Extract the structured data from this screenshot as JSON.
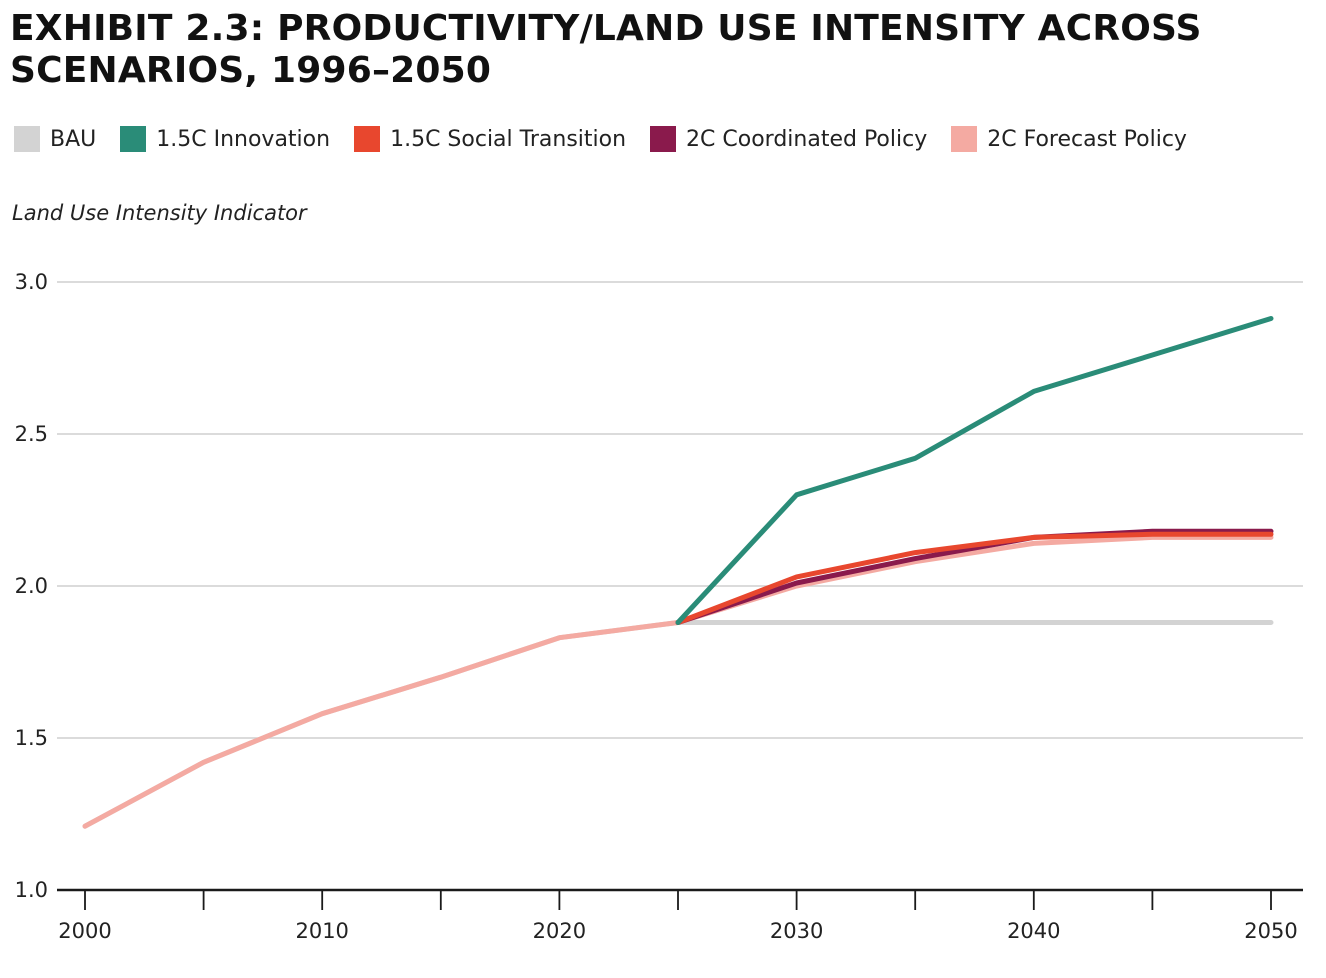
{
  "chart_data": {
    "type": "line",
    "title": "EXHIBIT 2.3: PRODUCTIVITY/LAND USE INTENSITY ACROSS SCENARIOS, 1996–2050",
    "ylabel": "Land Use Intensity Indicator",
    "xlabel": "",
    "xlim": [
      2000,
      2050
    ],
    "ylim": [
      1.0,
      3.0
    ],
    "x_ticks": [
      2000,
      2010,
      2020,
      2030,
      2040,
      2050
    ],
    "x_minor_ticks": [
      2005,
      2015,
      2025,
      2035,
      2045
    ],
    "y_ticks": [
      "1.0",
      "1.5",
      "2.0",
      "2.5",
      "3.0"
    ],
    "grid": true,
    "legend_position": "top",
    "series": [
      {
        "name": "BAU",
        "color": "#d3d3d3",
        "x": [
          2000,
          2005,
          2010,
          2015,
          2020,
          2025,
          2030,
          2035,
          2040,
          2045,
          2050
        ],
        "values": [
          1.21,
          1.42,
          1.58,
          1.7,
          1.83,
          1.88,
          1.88,
          1.88,
          1.88,
          1.88,
          1.88
        ]
      },
      {
        "name": "2C Forecast Policy",
        "color": "#f4aaa2",
        "x": [
          2000,
          2005,
          2010,
          2015,
          2020,
          2025,
          2030,
          2035,
          2040,
          2045,
          2050
        ],
        "values": [
          1.21,
          1.42,
          1.58,
          1.7,
          1.83,
          1.88,
          2.0,
          2.08,
          2.14,
          2.16,
          2.16
        ]
      },
      {
        "name": "2C Coordinated Policy",
        "color": "#8a1a4c",
        "x": [
          2025,
          2030,
          2035,
          2040,
          2045,
          2050
        ],
        "values": [
          1.88,
          2.01,
          2.09,
          2.16,
          2.18,
          2.18
        ]
      },
      {
        "name": "1.5C Social Transition",
        "color": "#e8472e",
        "x": [
          2025,
          2030,
          2035,
          2040,
          2045,
          2050
        ],
        "values": [
          1.88,
          2.03,
          2.11,
          2.16,
          2.17,
          2.17
        ]
      },
      {
        "name": "1.5C Innovation",
        "color": "#2a8c78",
        "x": [
          2025,
          2030,
          2035,
          2040,
          2045,
          2050
        ],
        "values": [
          1.88,
          2.3,
          2.42,
          2.64,
          2.76,
          2.88
        ]
      }
    ],
    "legend": [
      {
        "label": "BAU",
        "color": "#d3d3d3"
      },
      {
        "label": "1.5C Innovation",
        "color": "#2a8c78"
      },
      {
        "label": "1.5C Social Transition",
        "color": "#e8472e"
      },
      {
        "label": "2C Coordinated Policy",
        "color": "#8a1a4c"
      },
      {
        "label": "2C Forecast Policy",
        "color": "#f4aaa2"
      }
    ]
  }
}
